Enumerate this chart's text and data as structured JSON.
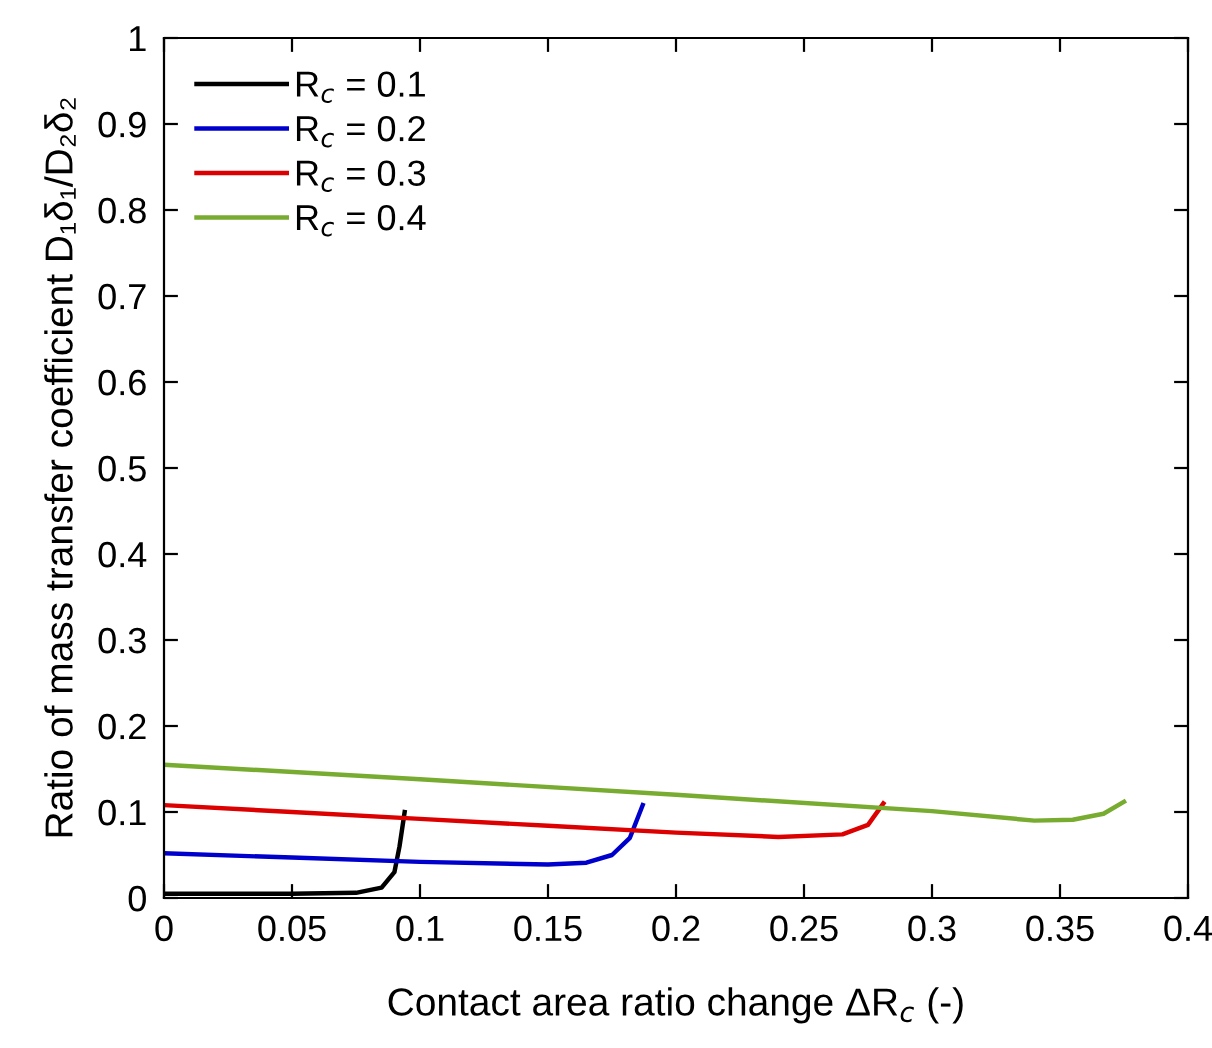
{
  "chart_data": {
    "type": "line",
    "xlabel": "Contact area ratio change ΔR$_{c}$ (-)",
    "ylabel": "Ratio of mass transfer coefficient D₁δ₁/D₂δ₂",
    "series": [
      {
        "name": "R$_{c}$ = 0.1",
        "color": "#000000",
        "x": [
          0,
          0.05,
          0.075,
          0.085,
          0.09,
          0.092,
          0.094
        ],
        "values": [
          0.005,
          0.005,
          0.006,
          0.012,
          0.03,
          0.06,
          0.1
        ]
      },
      {
        "name": "R$_{c}$ = 0.2",
        "color": "#0000cc",
        "x": [
          0,
          0.05,
          0.1,
          0.15,
          0.165,
          0.175,
          0.182,
          0.187
        ],
        "values": [
          0.052,
          0.047,
          0.042,
          0.039,
          0.041,
          0.05,
          0.07,
          0.108
        ]
      },
      {
        "name": "R$_{c}$ = 0.3",
        "color": "#dd0000",
        "x": [
          0,
          0.05,
          0.1,
          0.15,
          0.2,
          0.24,
          0.265,
          0.275,
          0.281
        ],
        "values": [
          0.108,
          0.1,
          0.092,
          0.084,
          0.076,
          0.071,
          0.074,
          0.085,
          0.11
        ]
      },
      {
        "name": "R$_{c}$ = 0.4",
        "color": "#77ac30",
        "x": [
          0,
          0.1,
          0.2,
          0.3,
          0.34,
          0.355,
          0.367,
          0.375
        ],
        "values": [
          0.155,
          0.138,
          0.12,
          0.101,
          0.09,
          0.091,
          0.098,
          0.112
        ]
      }
    ],
    "xlim": [
      0,
      0.4
    ],
    "xticks": [
      0,
      0.05,
      0.1,
      0.15,
      0.2,
      0.25,
      0.3,
      0.35,
      0.4
    ],
    "ylim": [
      0,
      1
    ],
    "yticks": [
      0,
      0.1,
      0.2,
      0.3,
      0.4,
      0.5,
      0.6,
      0.7,
      0.8,
      0.9,
      1
    ],
    "legend": "top left",
    "grid": false,
    "marker": "none",
    "line_style": "solid"
  }
}
